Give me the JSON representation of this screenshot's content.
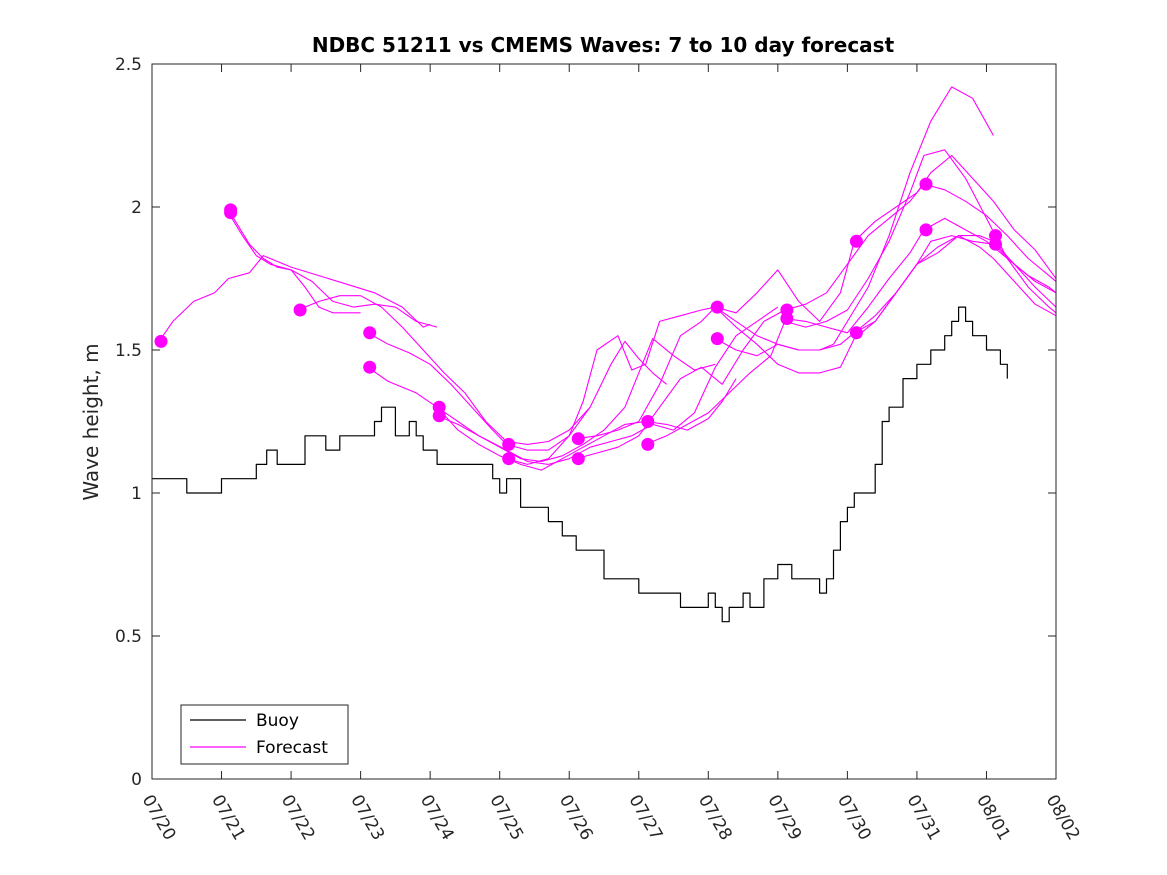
{
  "chart_data": {
    "type": "line",
    "title": "NDBC 51211 vs CMEMS Waves: 7 to 10 day forecast",
    "xlabel": "",
    "ylabel": "Wave height, m",
    "xlim": [
      0,
      13
    ],
    "ylim": [
      0,
      2.5
    ],
    "x_ticks": [
      0,
      1,
      2,
      3,
      4,
      5,
      6,
      7,
      8,
      9,
      10,
      11,
      12,
      13
    ],
    "x_tick_labels": [
      "07/20",
      "07/21",
      "07/22",
      "07/23",
      "07/24",
      "07/25",
      "07/26",
      "07/27",
      "07/28",
      "07/29",
      "07/30",
      "07/31",
      "08/01",
      "08/02"
    ],
    "y_ticks": [
      0,
      0.5,
      1,
      1.5,
      2,
      2.5
    ],
    "y_tick_labels": [
      "0",
      "0.5",
      "1",
      "1.5",
      "2",
      "2.5"
    ],
    "grid": false,
    "legend_position": "bottom-left",
    "legend": [
      {
        "label": "Buoy",
        "color": "#000000"
      },
      {
        "label": "Forecast",
        "color": "#ff00ff"
      }
    ],
    "colors": {
      "buoy": "#000000",
      "forecast": "#ff00ff"
    },
    "series": [
      {
        "name": "Buoy",
        "color": "#000000",
        "x": [
          0.0,
          0.5,
          1.0,
          1.3,
          1.5,
          1.65,
          1.8,
          2.0,
          2.2,
          2.5,
          2.7,
          2.9,
          3.0,
          3.1,
          3.2,
          3.3,
          3.5,
          3.7,
          3.8,
          3.9,
          4.0,
          4.1,
          4.3,
          4.5,
          4.7,
          4.9,
          5.0,
          5.1,
          5.3,
          5.5,
          5.7,
          5.9,
          6.1,
          6.3,
          6.5,
          6.7,
          6.9,
          7.0,
          7.2,
          7.4,
          7.6,
          7.8,
          8.0,
          8.1,
          8.2,
          8.3,
          8.4,
          8.5,
          8.6,
          8.8,
          9.0,
          9.2,
          9.4,
          9.6,
          9.7,
          9.8,
          9.9,
          10.0,
          10.1,
          10.2,
          10.3,
          10.4,
          10.5,
          10.6,
          10.7,
          10.8,
          10.9,
          11.0,
          11.1,
          11.2,
          11.3,
          11.4,
          11.5,
          11.6,
          11.7,
          11.8,
          11.9,
          12.0,
          12.1,
          12.2,
          12.3
        ],
        "y": [
          1.05,
          1.0,
          1.05,
          1.05,
          1.1,
          1.15,
          1.1,
          1.1,
          1.2,
          1.15,
          1.2,
          1.2,
          1.2,
          1.2,
          1.25,
          1.3,
          1.2,
          1.25,
          1.2,
          1.15,
          1.15,
          1.1,
          1.1,
          1.1,
          1.1,
          1.05,
          1.0,
          1.05,
          0.95,
          0.95,
          0.9,
          0.85,
          0.8,
          0.8,
          0.7,
          0.7,
          0.7,
          0.65,
          0.65,
          0.65,
          0.6,
          0.6,
          0.65,
          0.6,
          0.55,
          0.6,
          0.6,
          0.65,
          0.6,
          0.7,
          0.75,
          0.7,
          0.7,
          0.65,
          0.7,
          0.8,
          0.9,
          0.95,
          1.0,
          1.0,
          1.0,
          1.1,
          1.25,
          1.3,
          1.3,
          1.4,
          1.4,
          1.45,
          1.45,
          1.5,
          1.5,
          1.55,
          1.6,
          1.65,
          1.6,
          1.55,
          1.55,
          1.5,
          1.5,
          1.45,
          1.4
        ]
      },
      {
        "name": "",
        "color": "#ff00ff",
        "x": [
          0.1,
          0.3,
          0.6,
          0.9,
          1.1,
          1.4,
          1.6,
          2.0,
          2.4,
          2.8,
          3.2,
          3.6,
          3.9,
          4.0
        ],
        "y": [
          1.53,
          1.6,
          1.67,
          1.7,
          1.75,
          1.77,
          1.83,
          1.79,
          1.76,
          1.73,
          1.7,
          1.65,
          1.58,
          1.59
        ]
      },
      {
        "name": "",
        "color": "#ff00ff",
        "x": [
          1.1,
          1.3,
          1.5,
          1.7,
          2.0,
          2.3,
          2.6,
          2.9,
          3.2,
          3.5,
          3.8,
          4.1
        ],
        "y": [
          1.98,
          1.9,
          1.83,
          1.8,
          1.78,
          1.74,
          1.67,
          1.65,
          1.66,
          1.65,
          1.6,
          1.58
        ]
      },
      {
        "name": "",
        "color": "#ff00ff",
        "x": [
          1.1,
          1.4,
          1.6,
          1.8,
          2.0,
          2.2,
          2.4,
          2.6,
          3.0
        ],
        "y": [
          1.99,
          1.87,
          1.82,
          1.79,
          1.78,
          1.72,
          1.65,
          1.63,
          1.63
        ]
      },
      {
        "name": "",
        "color": "#ff00ff",
        "x": [
          2.1,
          2.4,
          2.7,
          3.0,
          3.3,
          3.6,
          3.9,
          4.2,
          4.5,
          4.8,
          5.1,
          5.4,
          5.7,
          6.0,
          6.3
        ],
        "y": [
          1.64,
          1.67,
          1.69,
          1.69,
          1.65,
          1.58,
          1.5,
          1.42,
          1.35,
          1.25,
          1.18,
          1.17,
          1.18,
          1.22,
          1.3
        ]
      },
      {
        "name": "",
        "color": "#ff00ff",
        "x": [
          3.1,
          3.4,
          3.7,
          4.0,
          4.3,
          4.6,
          4.9,
          5.1,
          5.4,
          5.7,
          6.0,
          6.3,
          6.6,
          6.8,
          7.0,
          7.2,
          7.4
        ],
        "y": [
          1.56,
          1.52,
          1.49,
          1.45,
          1.38,
          1.3,
          1.22,
          1.17,
          1.15,
          1.15,
          1.2,
          1.3,
          1.45,
          1.53,
          1.47,
          1.42,
          1.38
        ]
      },
      {
        "name": "",
        "color": "#ff00ff",
        "x": [
          3.1,
          3.4,
          3.8,
          4.1,
          4.4,
          4.7,
          5.0,
          5.3,
          5.6,
          5.9,
          6.2,
          6.5,
          6.8,
          7.1,
          7.4,
          7.7,
          8.0,
          8.2,
          8.4
        ],
        "y": [
          1.44,
          1.39,
          1.35,
          1.3,
          1.22,
          1.17,
          1.13,
          1.1,
          1.08,
          1.12,
          1.16,
          1.2,
          1.24,
          1.25,
          1.24,
          1.22,
          1.26,
          1.32,
          1.4
        ]
      },
      {
        "name": "",
        "color": "#ff00ff",
        "x": [
          4.1,
          4.4,
          4.7,
          5.0,
          5.3,
          5.6,
          5.9,
          6.2,
          6.5,
          6.8,
          7.0,
          7.2,
          7.5,
          7.8,
          8.1
        ],
        "y": [
          1.3,
          1.25,
          1.2,
          1.16,
          1.12,
          1.11,
          1.13,
          1.17,
          1.22,
          1.3,
          1.42,
          1.54,
          1.48,
          1.43,
          1.45
        ]
      },
      {
        "name": "",
        "color": "#ff00ff",
        "x": [
          4.1,
          4.4,
          4.7,
          5.1,
          5.4,
          5.7,
          6.0,
          6.3,
          6.6,
          6.9,
          7.2,
          7.5,
          7.8,
          8.1,
          8.4,
          8.7,
          9.0
        ],
        "y": [
          1.27,
          1.24,
          1.2,
          1.15,
          1.11,
          1.1,
          1.12,
          1.16,
          1.18,
          1.2,
          1.24,
          1.22,
          1.28,
          1.44,
          1.55,
          1.6,
          1.65
        ]
      },
      {
        "name": "",
        "color": "#ff00ff",
        "x": [
          5.1,
          5.4,
          5.7,
          6.0,
          6.2,
          6.4,
          6.7,
          6.9,
          7.1,
          7.3,
          7.6,
          7.9,
          8.1,
          8.4,
          8.7,
          9.0,
          9.3,
          9.6,
          9.8,
          10.0,
          10.3,
          10.6,
          10.9,
          11.2,
          11.5,
          11.8,
          12.1
        ],
        "y": [
          1.12,
          1.1,
          1.12,
          1.2,
          1.32,
          1.5,
          1.55,
          1.43,
          1.45,
          1.6,
          1.62,
          1.64,
          1.65,
          1.6,
          1.55,
          1.52,
          1.5,
          1.5,
          1.52,
          1.6,
          1.72,
          1.9,
          2.12,
          2.3,
          2.42,
          2.38,
          2.25
        ]
      },
      {
        "name": "",
        "color": "#ff00ff",
        "x": [
          6.1,
          6.4,
          6.7,
          7.0,
          7.3,
          7.6,
          7.9,
          8.1,
          8.4,
          8.7,
          9.0,
          9.3,
          9.6,
          9.9,
          10.1,
          10.4,
          10.7,
          11.0,
          11.2,
          11.5,
          11.8,
          12.1,
          12.4,
          12.7,
          13.0
        ],
        "y": [
          1.19,
          1.2,
          1.22,
          1.25,
          1.38,
          1.55,
          1.6,
          1.65,
          1.63,
          1.7,
          1.78,
          1.67,
          1.6,
          1.7,
          1.88,
          1.95,
          2.0,
          2.05,
          2.12,
          2.18,
          2.1,
          2.02,
          1.92,
          1.85,
          1.75
        ]
      },
      {
        "name": "",
        "color": "#ff00ff",
        "x": [
          6.1,
          6.4,
          6.7,
          7.0,
          7.3,
          7.6,
          7.9,
          8.2,
          8.5,
          8.8,
          9.1,
          9.4,
          9.7,
          10.0,
          10.3,
          10.6,
          10.9,
          11.1,
          11.4,
          11.7,
          12.0,
          12.3,
          12.6,
          12.9,
          13.0
        ],
        "y": [
          1.12,
          1.14,
          1.16,
          1.2,
          1.3,
          1.4,
          1.44,
          1.38,
          1.5,
          1.6,
          1.64,
          1.66,
          1.7,
          1.8,
          1.9,
          1.96,
          2.02,
          2.08,
          2.06,
          2.02,
          1.97,
          1.9,
          1.82,
          1.76,
          1.74
        ]
      },
      {
        "name": "",
        "color": "#ff00ff",
        "x": [
          7.1,
          7.4,
          7.7,
          8.0,
          8.3,
          8.6,
          8.9,
          9.1,
          9.4,
          9.7,
          10.0,
          10.3,
          10.6,
          10.9,
          11.1,
          11.4,
          11.7,
          12.0,
          12.3,
          12.6,
          12.9,
          13.0
        ],
        "y": [
          1.17,
          1.2,
          1.24,
          1.28,
          1.35,
          1.42,
          1.48,
          1.6,
          1.58,
          1.6,
          1.64,
          1.75,
          1.88,
          2.05,
          2.18,
          2.2,
          2.1,
          1.96,
          1.82,
          1.72,
          1.65,
          1.63
        ]
      },
      {
        "name": "",
        "color": "#ff00ff",
        "x": [
          8.1,
          8.4,
          8.7,
          9.0,
          9.3,
          9.6,
          9.9,
          10.1,
          10.4,
          10.7,
          11.0,
          11.3,
          11.6,
          11.9,
          12.1,
          12.4,
          12.7,
          13.0
        ],
        "y": [
          1.54,
          1.5,
          1.48,
          1.52,
          1.5,
          1.5,
          1.52,
          1.56,
          1.6,
          1.7,
          1.8,
          1.86,
          1.9,
          1.86,
          1.82,
          1.74,
          1.66,
          1.62
        ]
      },
      {
        "name": "",
        "color": "#ff00ff",
        "x": [
          8.1,
          8.4,
          8.7,
          9.0,
          9.3,
          9.6,
          9.9,
          10.1,
          10.4,
          10.7,
          11.0,
          11.3,
          11.6,
          11.9,
          12.1,
          12.4,
          12.7,
          13.0
        ],
        "y": [
          1.65,
          1.58,
          1.52,
          1.45,
          1.42,
          1.42,
          1.44,
          1.54,
          1.6,
          1.7,
          1.8,
          1.84,
          1.9,
          1.9,
          1.88,
          1.8,
          1.74,
          1.7
        ]
      },
      {
        "name": "",
        "color": "#ff00ff",
        "x": [
          9.1,
          9.4,
          9.7,
          10.0,
          10.3,
          10.6,
          10.9,
          11.1,
          11.4,
          11.7,
          12.0,
          12.3,
          12.6,
          12.9,
          13.0
        ],
        "y": [
          1.61,
          1.6,
          1.58,
          1.56,
          1.65,
          1.75,
          1.84,
          1.92,
          1.96,
          1.92,
          1.88,
          1.82,
          1.76,
          1.72,
          1.7
        ]
      },
      {
        "name": "",
        "color": "#ff00ff",
        "x": [
          10.1,
          10.4,
          10.7,
          11.0,
          11.2,
          11.5,
          11.8,
          12.1,
          12.4,
          12.7,
          13.0
        ],
        "y": [
          1.56,
          1.62,
          1.7,
          1.8,
          1.88,
          1.9,
          1.88,
          1.87,
          1.8,
          1.72,
          1.65
        ]
      }
    ],
    "forecast_start_points": [
      {
        "x": 0.13,
        "y": 1.53
      },
      {
        "x": 1.13,
        "y": 1.98
      },
      {
        "x": 1.13,
        "y": 1.99
      },
      {
        "x": 2.13,
        "y": 1.64
      },
      {
        "x": 3.13,
        "y": 1.56
      },
      {
        "x": 3.13,
        "y": 1.44
      },
      {
        "x": 4.13,
        "y": 1.3
      },
      {
        "x": 4.13,
        "y": 1.27
      },
      {
        "x": 5.13,
        "y": 1.17
      },
      {
        "x": 5.13,
        "y": 1.12
      },
      {
        "x": 6.13,
        "y": 1.19
      },
      {
        "x": 6.13,
        "y": 1.12
      },
      {
        "x": 7.13,
        "y": 1.25
      },
      {
        "x": 7.13,
        "y": 1.17
      },
      {
        "x": 8.13,
        "y": 1.65
      },
      {
        "x": 8.13,
        "y": 1.54
      },
      {
        "x": 9.13,
        "y": 1.64
      },
      {
        "x": 9.13,
        "y": 1.61
      },
      {
        "x": 10.13,
        "y": 1.88
      },
      {
        "x": 10.13,
        "y": 1.56
      },
      {
        "x": 11.13,
        "y": 2.08
      },
      {
        "x": 11.13,
        "y": 1.92
      },
      {
        "x": 12.13,
        "y": 1.9
      },
      {
        "x": 12.13,
        "y": 1.87
      }
    ]
  }
}
